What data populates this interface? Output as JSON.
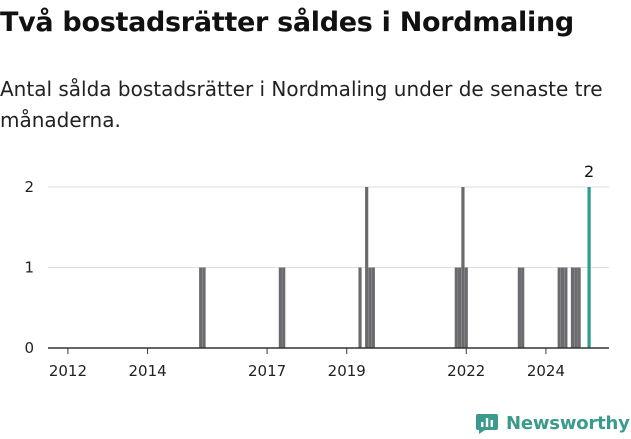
{
  "title": "Två bostadsrätter såldes i Nordmaling",
  "subtitle": "Antal sålda bostadsrätter i Nordmaling under de senaste tre månaderna.",
  "brand": {
    "name": "Newsworthy",
    "icon": "newsworthy-logo-icon",
    "color": "#3a9a8e"
  },
  "chart_data": {
    "type": "bar",
    "title": "",
    "xlabel": "",
    "ylabel": "",
    "ylim": [
      0,
      2
    ],
    "yticks": [
      0,
      1,
      2
    ],
    "xlim": [
      "2011-07",
      "2025-08"
    ],
    "xticks": [
      "2012",
      "2014",
      "2017",
      "2019",
      "2022",
      "2024"
    ],
    "grid": true,
    "colors": {
      "default": "#6b6b6f",
      "highlight": "#2a9d8f",
      "grid": "#dddddd",
      "axis": "#333333"
    },
    "annotation": {
      "x": "2025-02",
      "label": "2"
    },
    "series": [
      {
        "x": [
          "2015-05",
          "2015-06",
          "2017-05",
          "2017-06",
          "2019-05",
          "2019-07",
          "2019-08",
          "2019-09",
          "2021-10",
          "2021-11",
          "2021-12",
          "2022-01",
          "2023-05",
          "2023-06",
          "2024-05",
          "2024-06",
          "2024-07",
          "2024-09",
          "2024-10",
          "2024-11",
          "2025-02"
        ],
        "values": [
          1,
          1,
          1,
          1,
          1,
          2,
          1,
          1,
          1,
          1,
          2,
          1,
          1,
          1,
          1,
          1,
          1,
          1,
          1,
          1,
          2
        ],
        "highlight": [
          false,
          false,
          false,
          false,
          false,
          false,
          false,
          false,
          false,
          false,
          false,
          false,
          false,
          false,
          false,
          false,
          false,
          false,
          false,
          false,
          true
        ]
      }
    ]
  }
}
